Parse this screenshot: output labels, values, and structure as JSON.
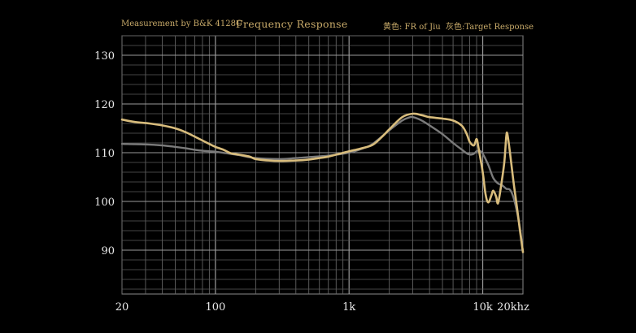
{
  "header": {
    "measurement": "Measurement by B&K 4128C",
    "title": "Frequency Response",
    "legend_fr": "黄色: FR of Jiu",
    "legend_target": "灰色:Target Response"
  },
  "chart_data": {
    "type": "line",
    "title": "Frequency Response",
    "xscale": "log",
    "xlim": [
      20,
      20000
    ],
    "ylim": [
      81,
      134
    ],
    "x_ticks": [
      20,
      100,
      1000,
      10000,
      20000
    ],
    "x_tick_labels": [
      "20",
      "100",
      "1k",
      "10k",
      "20khz"
    ],
    "y_ticks": [
      90,
      100,
      110,
      120,
      130
    ],
    "y_tick_labels": [
      "90",
      "100",
      "110",
      "120",
      "130"
    ],
    "grid": true,
    "legend": "top-right",
    "series": [
      {
        "name": "FR of Jiu",
        "color": "#d8bc7c",
        "points": [
          [
            20,
            116.8
          ],
          [
            25,
            116.3
          ],
          [
            32,
            116.0
          ],
          [
            40,
            115.6
          ],
          [
            50,
            115.0
          ],
          [
            60,
            114.2
          ],
          [
            70,
            113.3
          ],
          [
            80,
            112.5
          ],
          [
            90,
            111.8
          ],
          [
            100,
            111.2
          ],
          [
            115,
            110.6
          ],
          [
            130,
            109.9
          ],
          [
            150,
            109.6
          ],
          [
            180,
            109.2
          ],
          [
            200,
            108.7
          ],
          [
            250,
            108.4
          ],
          [
            300,
            108.3
          ],
          [
            400,
            108.4
          ],
          [
            500,
            108.6
          ],
          [
            600,
            108.9
          ],
          [
            700,
            109.2
          ],
          [
            800,
            109.6
          ],
          [
            1000,
            110.3
          ],
          [
            1200,
            110.8
          ],
          [
            1500,
            111.6
          ],
          [
            1800,
            113.5
          ],
          [
            2000,
            114.8
          ],
          [
            2500,
            117.3
          ],
          [
            3000,
            118.0
          ],
          [
            3500,
            117.7
          ],
          [
            4000,
            117.3
          ],
          [
            5000,
            117.0
          ],
          [
            6000,
            116.6
          ],
          [
            7000,
            115.5
          ],
          [
            7600,
            113.8
          ],
          [
            8000,
            112.2
          ],
          [
            8600,
            111.5
          ],
          [
            9000,
            112.8
          ],
          [
            9300,
            111.0
          ],
          [
            10000,
            106.0
          ],
          [
            10500,
            101.5
          ],
          [
            11000,
            99.8
          ],
          [
            11600,
            101.2
          ],
          [
            12000,
            102.2
          ],
          [
            12600,
            101.0
          ],
          [
            13000,
            99.6
          ],
          [
            13600,
            102.5
          ],
          [
            14500,
            108.0
          ],
          [
            15000,
            113.3
          ],
          [
            15300,
            113.8
          ],
          [
            16000,
            110.0
          ],
          [
            17000,
            104.0
          ],
          [
            18000,
            99.0
          ],
          [
            19000,
            94.0
          ],
          [
            20000,
            89.6
          ]
        ]
      },
      {
        "name": "Target Response",
        "color": "#7b7b7b",
        "points": [
          [
            20,
            111.8
          ],
          [
            30,
            111.7
          ],
          [
            40,
            111.5
          ],
          [
            50,
            111.2
          ],
          [
            60,
            110.9
          ],
          [
            70,
            110.6
          ],
          [
            80,
            110.4
          ],
          [
            100,
            110.2
          ],
          [
            120,
            109.9
          ],
          [
            150,
            109.5
          ],
          [
            200,
            108.9
          ],
          [
            300,
            108.7
          ],
          [
            400,
            108.9
          ],
          [
            500,
            109.1
          ],
          [
            700,
            109.4
          ],
          [
            1000,
            110.0
          ],
          [
            1300,
            111.0
          ],
          [
            1500,
            111.8
          ],
          [
            2000,
            114.6
          ],
          [
            2500,
            116.6
          ],
          [
            2800,
            117.2
          ],
          [
            3000,
            117.3
          ],
          [
            3500,
            116.6
          ],
          [
            4000,
            115.6
          ],
          [
            5000,
            113.8
          ],
          [
            6000,
            112.0
          ],
          [
            7000,
            110.6
          ],
          [
            7800,
            109.7
          ],
          [
            8500,
            109.7
          ],
          [
            9000,
            110.3
          ],
          [
            9500,
            110.4
          ],
          [
            10000,
            109.8
          ],
          [
            11000,
            107.5
          ],
          [
            12000,
            104.8
          ],
          [
            13000,
            103.7
          ],
          [
            14000,
            103.3
          ],
          [
            15000,
            102.6
          ],
          [
            16000,
            102.4
          ],
          [
            17000,
            100.8
          ],
          [
            18000,
            98.0
          ],
          [
            19000,
            94.5
          ],
          [
            20000,
            89.6
          ]
        ]
      }
    ]
  }
}
